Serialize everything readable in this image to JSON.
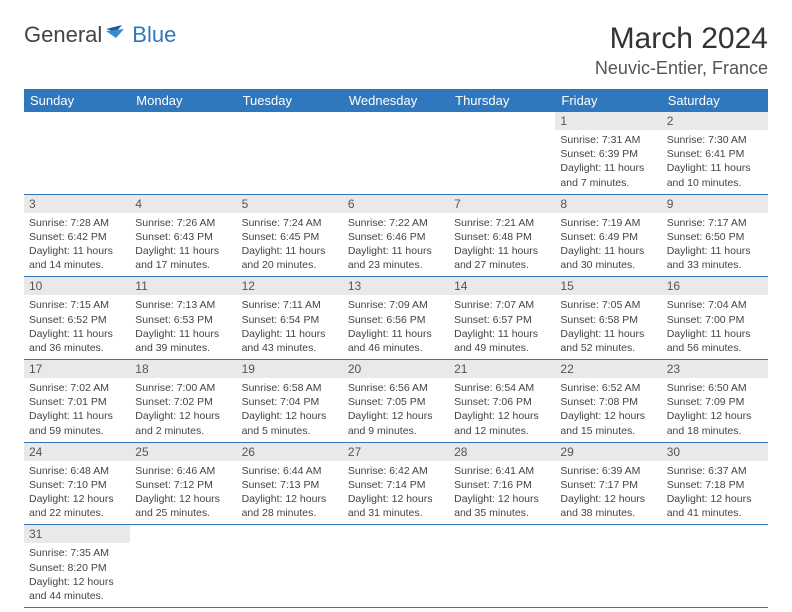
{
  "logo": {
    "text1": "General",
    "text2": "Blue"
  },
  "title": "March 2024",
  "location": "Neuvic-Entier, France",
  "colors": {
    "header_bg": "#2f78bd",
    "header_fg": "#ffffff",
    "daybar_bg": "#e9e9e9",
    "border": "#2f78bd"
  },
  "dayHeaders": [
    "Sunday",
    "Monday",
    "Tuesday",
    "Wednesday",
    "Thursday",
    "Friday",
    "Saturday"
  ],
  "weeks": [
    [
      null,
      null,
      null,
      null,
      null,
      {
        "n": "1",
        "sunrise": "7:31 AM",
        "sunset": "6:39 PM",
        "daylight": "11 hours and 7 minutes."
      },
      {
        "n": "2",
        "sunrise": "7:30 AM",
        "sunset": "6:41 PM",
        "daylight": "11 hours and 10 minutes."
      }
    ],
    [
      {
        "n": "3",
        "sunrise": "7:28 AM",
        "sunset": "6:42 PM",
        "daylight": "11 hours and 14 minutes."
      },
      {
        "n": "4",
        "sunrise": "7:26 AM",
        "sunset": "6:43 PM",
        "daylight": "11 hours and 17 minutes."
      },
      {
        "n": "5",
        "sunrise": "7:24 AM",
        "sunset": "6:45 PM",
        "daylight": "11 hours and 20 minutes."
      },
      {
        "n": "6",
        "sunrise": "7:22 AM",
        "sunset": "6:46 PM",
        "daylight": "11 hours and 23 minutes."
      },
      {
        "n": "7",
        "sunrise": "7:21 AM",
        "sunset": "6:48 PM",
        "daylight": "11 hours and 27 minutes."
      },
      {
        "n": "8",
        "sunrise": "7:19 AM",
        "sunset": "6:49 PM",
        "daylight": "11 hours and 30 minutes."
      },
      {
        "n": "9",
        "sunrise": "7:17 AM",
        "sunset": "6:50 PM",
        "daylight": "11 hours and 33 minutes."
      }
    ],
    [
      {
        "n": "10",
        "sunrise": "7:15 AM",
        "sunset": "6:52 PM",
        "daylight": "11 hours and 36 minutes."
      },
      {
        "n": "11",
        "sunrise": "7:13 AM",
        "sunset": "6:53 PM",
        "daylight": "11 hours and 39 minutes."
      },
      {
        "n": "12",
        "sunrise": "7:11 AM",
        "sunset": "6:54 PM",
        "daylight": "11 hours and 43 minutes."
      },
      {
        "n": "13",
        "sunrise": "7:09 AM",
        "sunset": "6:56 PM",
        "daylight": "11 hours and 46 minutes."
      },
      {
        "n": "14",
        "sunrise": "7:07 AM",
        "sunset": "6:57 PM",
        "daylight": "11 hours and 49 minutes."
      },
      {
        "n": "15",
        "sunrise": "7:05 AM",
        "sunset": "6:58 PM",
        "daylight": "11 hours and 52 minutes."
      },
      {
        "n": "16",
        "sunrise": "7:04 AM",
        "sunset": "7:00 PM",
        "daylight": "11 hours and 56 minutes."
      }
    ],
    [
      {
        "n": "17",
        "sunrise": "7:02 AM",
        "sunset": "7:01 PM",
        "daylight": "11 hours and 59 minutes."
      },
      {
        "n": "18",
        "sunrise": "7:00 AM",
        "sunset": "7:02 PM",
        "daylight": "12 hours and 2 minutes."
      },
      {
        "n": "19",
        "sunrise": "6:58 AM",
        "sunset": "7:04 PM",
        "daylight": "12 hours and 5 minutes."
      },
      {
        "n": "20",
        "sunrise": "6:56 AM",
        "sunset": "7:05 PM",
        "daylight": "12 hours and 9 minutes."
      },
      {
        "n": "21",
        "sunrise": "6:54 AM",
        "sunset": "7:06 PM",
        "daylight": "12 hours and 12 minutes."
      },
      {
        "n": "22",
        "sunrise": "6:52 AM",
        "sunset": "7:08 PM",
        "daylight": "12 hours and 15 minutes."
      },
      {
        "n": "23",
        "sunrise": "6:50 AM",
        "sunset": "7:09 PM",
        "daylight": "12 hours and 18 minutes."
      }
    ],
    [
      {
        "n": "24",
        "sunrise": "6:48 AM",
        "sunset": "7:10 PM",
        "daylight": "12 hours and 22 minutes."
      },
      {
        "n": "25",
        "sunrise": "6:46 AM",
        "sunset": "7:12 PM",
        "daylight": "12 hours and 25 minutes."
      },
      {
        "n": "26",
        "sunrise": "6:44 AM",
        "sunset": "7:13 PM",
        "daylight": "12 hours and 28 minutes."
      },
      {
        "n": "27",
        "sunrise": "6:42 AM",
        "sunset": "7:14 PM",
        "daylight": "12 hours and 31 minutes."
      },
      {
        "n": "28",
        "sunrise": "6:41 AM",
        "sunset": "7:16 PM",
        "daylight": "12 hours and 35 minutes."
      },
      {
        "n": "29",
        "sunrise": "6:39 AM",
        "sunset": "7:17 PM",
        "daylight": "12 hours and 38 minutes."
      },
      {
        "n": "30",
        "sunrise": "6:37 AM",
        "sunset": "7:18 PM",
        "daylight": "12 hours and 41 minutes."
      }
    ],
    [
      {
        "n": "31",
        "sunrise": "7:35 AM",
        "sunset": "8:20 PM",
        "daylight": "12 hours and 44 minutes."
      },
      null,
      null,
      null,
      null,
      null,
      null
    ]
  ],
  "labels": {
    "sunrise": "Sunrise: ",
    "sunset": "Sunset: ",
    "daylight": "Daylight: "
  }
}
